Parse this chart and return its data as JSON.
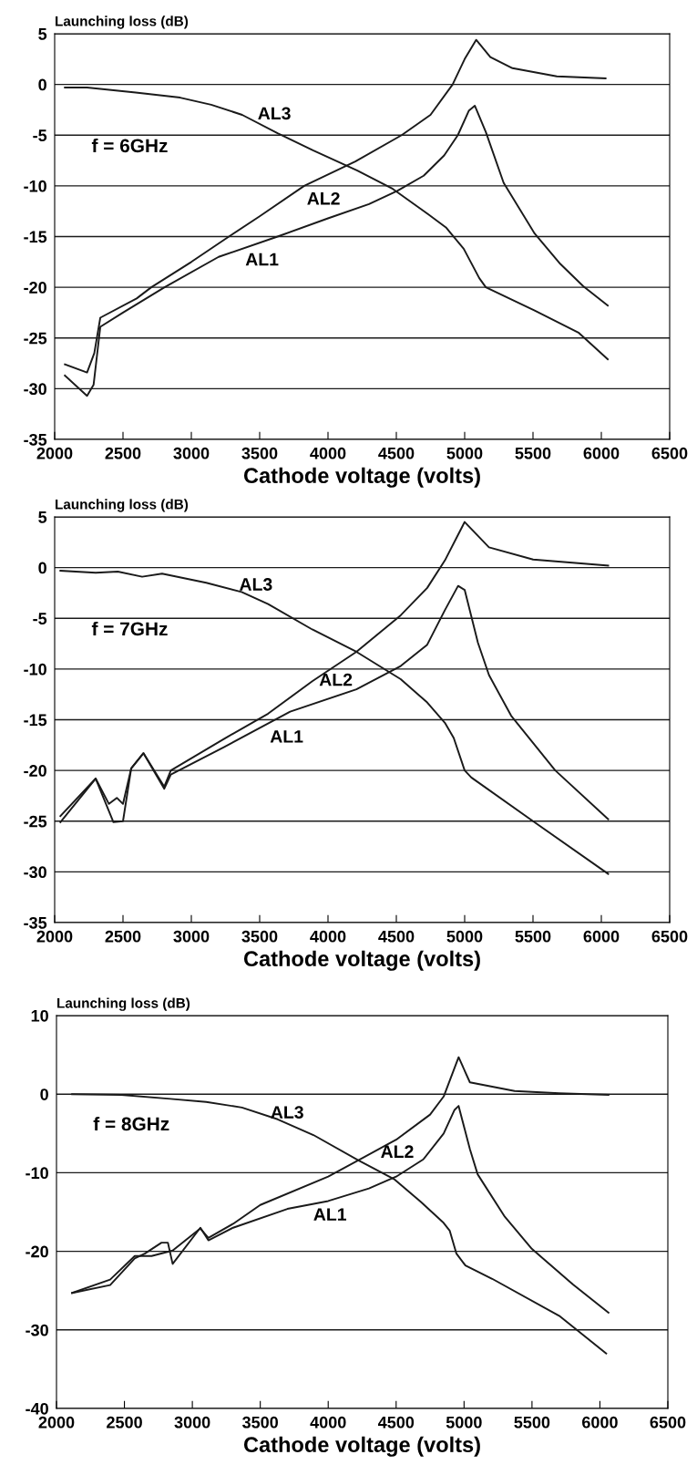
{
  "chart_data": [
    {
      "type": "line",
      "ylabel": "Launching loss (dB)",
      "xlabel": "Cathode voltage (volts)",
      "xlim": [
        2000,
        6500
      ],
      "xticks": [
        2000,
        2500,
        3000,
        3500,
        4000,
        4500,
        5000,
        5500,
        6000,
        6500
      ],
      "ylim": [
        -35,
        5
      ],
      "yticks": [
        -35,
        -30,
        -25,
        -20,
        -15,
        -10,
        -5,
        0,
        5
      ],
      "grid": "y",
      "marker": "none",
      "line_style": "solid",
      "annotations": [
        "AL3",
        "AL2",
        "AL1",
        "f = 6GHz"
      ],
      "series": [
        {
          "color": "#1a1a1a",
          "x": [
            2075,
            2237,
            2593,
            2918,
            3145,
            3372,
            3631,
            3890,
            4215,
            4474,
            4733,
            4863,
            4993,
            5107,
            5155,
            5512,
            5836,
            6047
          ],
          "values": [
            -0.3,
            -0.3,
            -0.8,
            -1.3,
            -2.0,
            -3.0,
            -4.8,
            -6.5,
            -8.5,
            -10.3,
            -12.8,
            -14.1,
            -16.2,
            -19.1,
            -20.0,
            -22.3,
            -24.5,
            -27.1
          ]
        },
        {
          "color": "#1a1a1a",
          "x": [
            2075,
            2237,
            2290,
            2334,
            2600,
            2707,
            3000,
            3275,
            3500,
            3826,
            4200,
            4539,
            4750,
            4912,
            5000,
            5084,
            5188,
            5350,
            5674,
            6031
          ],
          "values": [
            -27.6,
            -28.4,
            -26.5,
            -23.0,
            -21.1,
            -20.0,
            -17.5,
            -15.0,
            -13.0,
            -10.0,
            -7.6,
            -5.0,
            -3.0,
            0,
            2.5,
            4.4,
            2.7,
            1.6,
            0.8,
            0.6
          ]
        },
        {
          "color": "#1a1a1a",
          "x": [
            2075,
            2237,
            2285,
            2334,
            2500,
            2804,
            3200,
            3631,
            4000,
            4300,
            4507,
            4700,
            4850,
            4950,
            5030,
            5074,
            5155,
            5285,
            5512,
            5700,
            5868,
            6047
          ],
          "values": [
            -28.7,
            -30.7,
            -29.6,
            -23.9,
            -22.5,
            -20.0,
            -17.0,
            -15.0,
            -13.2,
            -11.8,
            -10.5,
            -9.0,
            -7.0,
            -5.0,
            -2.6,
            -2.1,
            -4.7,
            -9.7,
            -14.7,
            -17.7,
            -19.9,
            -21.8
          ]
        }
      ]
    },
    {
      "type": "line",
      "ylabel": "Launching loss (dB)",
      "xlabel": "Cathode voltage (volts)",
      "xlim": [
        2000,
        6500
      ],
      "xticks": [
        2000,
        2500,
        3000,
        3500,
        4000,
        4500,
        5000,
        5500,
        6000,
        6500
      ],
      "ylim": [
        -35,
        5
      ],
      "yticks": [
        -35,
        -30,
        -25,
        -20,
        -15,
        -10,
        -5,
        0,
        5
      ],
      "grid": "y",
      "marker": "none",
      "line_style": "solid",
      "annotations": [
        "AL3",
        "AL2",
        "AL1",
        "f = 7GHz"
      ],
      "series": [
        {
          "color": "#1a1a1a",
          "x": [
            2042,
            2300,
            2462,
            2640,
            2786,
            3109,
            3368,
            3562,
            3885,
            4208,
            4532,
            4726,
            4855,
            4920,
            5000,
            5049,
            5500,
            6050
          ],
          "values": [
            -0.3,
            -0.5,
            -0.4,
            -0.9,
            -0.6,
            -1.5,
            -2.4,
            -3.6,
            -6.1,
            -8.3,
            -11.0,
            -13.3,
            -15.3,
            -16.8,
            -20.0,
            -20.7,
            -25.0,
            -30.2
          ]
        },
        {
          "color": "#1a1a1a",
          "x": [
            2042,
            2300,
            2397,
            2455,
            2500,
            2560,
            2650,
            2802,
            2850,
            3238,
            3562,
            3885,
            4208,
            4532,
            4726,
            4855,
            5000,
            5178,
            5501,
            6050
          ],
          "values": [
            -24.5,
            -20.8,
            -23.3,
            -22.7,
            -23.3,
            -19.8,
            -18.3,
            -21.6,
            -20.0,
            -16.9,
            -14.4,
            -11.2,
            -8.3,
            -4.7,
            -2.0,
            0.7,
            4.5,
            2.0,
            0.8,
            0.2
          ]
        },
        {
          "color": "#1a1a1a",
          "x": [
            2042,
            2300,
            2430,
            2500,
            2560,
            2650,
            2802,
            2850,
            3238,
            3723,
            4208,
            4532,
            4726,
            4855,
            4952,
            5000,
            5097,
            5178,
            5340,
            5663,
            6050
          ],
          "values": [
            -25.1,
            -20.8,
            -25.1,
            -25.0,
            -19.8,
            -18.3,
            -21.8,
            -20.4,
            -17.7,
            -14.2,
            -12.0,
            -9.7,
            -7.6,
            -4.2,
            -1.8,
            -2.2,
            -7.4,
            -10.6,
            -14.6,
            -20.0,
            -24.8
          ]
        }
      ]
    },
    {
      "type": "line",
      "ylabel": "Launching loss (dB)",
      "xlabel": "Cathode voltage (volts)",
      "xlim": [
        2000,
        6500
      ],
      "xticks": [
        2000,
        2500,
        3000,
        3500,
        4000,
        4500,
        5000,
        5500,
        6000,
        6500
      ],
      "ylim": [
        -40,
        10
      ],
      "yticks": [
        -40,
        -30,
        -20,
        -10,
        0,
        10
      ],
      "grid": "y",
      "marker": "none",
      "line_style": "solid",
      "annotations": [
        "AL3",
        "AL2",
        "AL1",
        "f = 8GHz"
      ],
      "series": [
        {
          "color": "#1a1a1a",
          "x": [
            2115,
            2477,
            2839,
            3102,
            3365,
            3628,
            3891,
            4220,
            4484,
            4681,
            4845,
            4895,
            4944,
            5010,
            5207,
            5700,
            6046
          ],
          "values": [
            0,
            -0.1,
            -0.6,
            -1.0,
            -1.7,
            -3.2,
            -5.2,
            -8.4,
            -10.8,
            -13.7,
            -16.3,
            -17.4,
            -20.3,
            -21.8,
            -23.5,
            -28.2,
            -33.0
          ]
        },
        {
          "color": "#1a1a1a",
          "x": [
            2115,
            2395,
            2576,
            2700,
            2855,
            3059,
            3118,
            3300,
            3500,
            4000,
            4500,
            4750,
            4850,
            4960,
            5043,
            5372,
            5700,
            6063
          ],
          "values": [
            -25.3,
            -23.6,
            -20.6,
            -20.6,
            -19.9,
            -17.1,
            -18.3,
            -16.5,
            -14.1,
            -10.5,
            -5.8,
            -2.6,
            -0.3,
            4.7,
            1.5,
            0.4,
            0.1,
            -0.1
          ]
        },
        {
          "color": "#1a1a1a",
          "x": [
            2115,
            2395,
            2576,
            2650,
            2773,
            2820,
            2855,
            3059,
            3118,
            3300,
            3700,
            4000,
            4300,
            4500,
            4700,
            4850,
            4930,
            4960,
            5043,
            5100,
            5300,
            5500,
            5800,
            6063
          ],
          "values": [
            -25.3,
            -24.3,
            -20.9,
            -20.3,
            -18.9,
            -18.9,
            -21.6,
            -17.0,
            -18.6,
            -17.0,
            -14.6,
            -13.6,
            -12.0,
            -10.5,
            -8.3,
            -5.0,
            -2.0,
            -1.5,
            -7.0,
            -10.2,
            -15.6,
            -19.7,
            -24.2,
            -27.8
          ]
        }
      ]
    }
  ]
}
